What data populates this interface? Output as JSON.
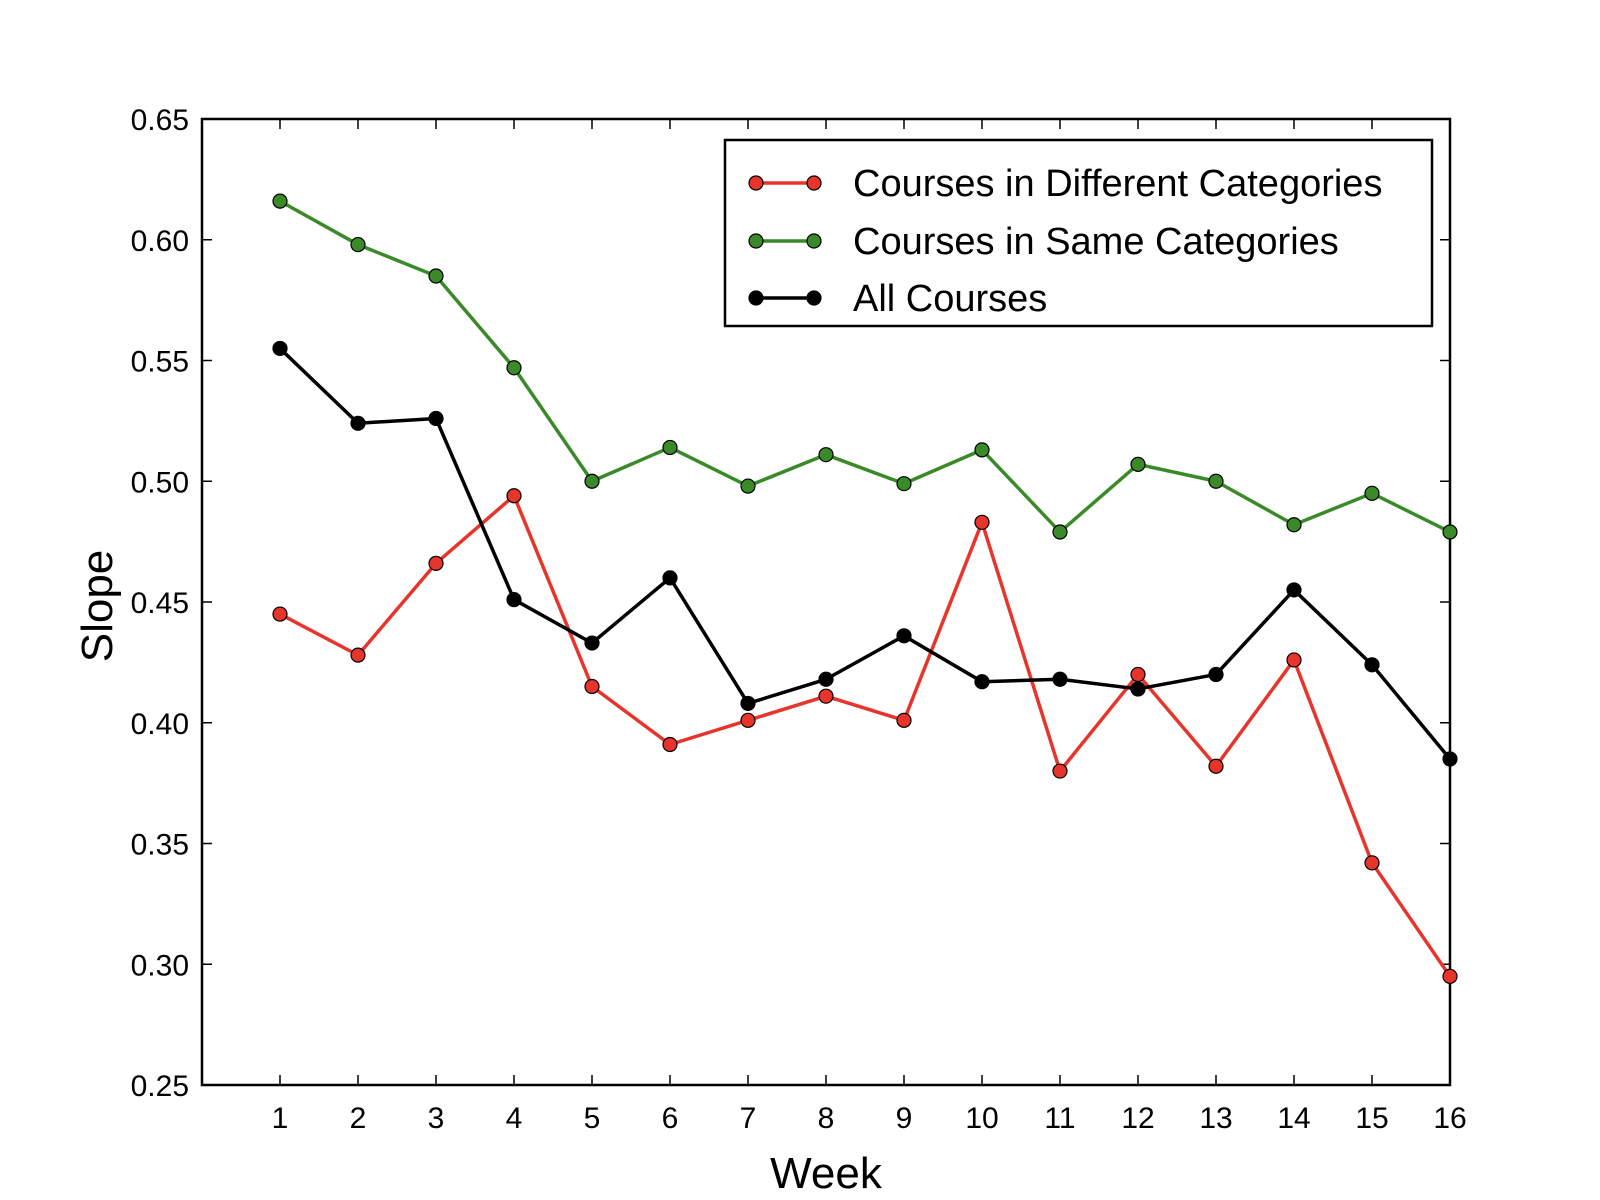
{
  "chart_data": {
    "type": "line",
    "title": "",
    "xlabel": "Week",
    "ylabel": "Slope",
    "x": [
      1,
      2,
      3,
      4,
      5,
      6,
      7,
      8,
      9,
      10,
      11,
      12,
      13,
      14,
      15,
      16
    ],
    "xticks": [
      "1",
      "2",
      "3",
      "4",
      "5",
      "6",
      "7",
      "8",
      "9",
      "10",
      "11",
      "12",
      "13",
      "14",
      "15",
      "16"
    ],
    "xlim": [
      0,
      16
    ],
    "ylim": [
      0.25,
      0.65
    ],
    "yticks": [
      "0.25",
      "0.30",
      "0.35",
      "0.40",
      "0.45",
      "0.50",
      "0.55",
      "0.60",
      "0.65"
    ],
    "ytick_values": [
      0.25,
      0.3,
      0.35,
      0.4,
      0.45,
      0.5,
      0.55,
      0.6,
      0.65
    ],
    "grid": false,
    "legend_position": "top-right",
    "series": [
      {
        "name": "Courses in Different Categories",
        "color": "#e8352b",
        "values": [
          0.445,
          0.428,
          0.466,
          0.494,
          0.415,
          0.391,
          0.401,
          0.411,
          0.401,
          0.483,
          0.38,
          0.42,
          0.382,
          0.426,
          0.342,
          0.295
        ]
      },
      {
        "name": "Courses in Same Categories",
        "color": "#3a8a2a",
        "values": [
          0.616,
          0.598,
          0.585,
          0.547,
          0.5,
          0.514,
          0.498,
          0.511,
          0.499,
          0.513,
          0.479,
          0.507,
          0.5,
          0.482,
          0.495,
          0.479
        ]
      },
      {
        "name": "All Courses",
        "color": "#000000",
        "values": [
          0.555,
          0.524,
          0.526,
          0.451,
          0.433,
          0.46,
          0.408,
          0.418,
          0.436,
          0.417,
          0.418,
          0.414,
          0.42,
          0.455,
          0.424,
          0.385
        ]
      }
    ]
  }
}
